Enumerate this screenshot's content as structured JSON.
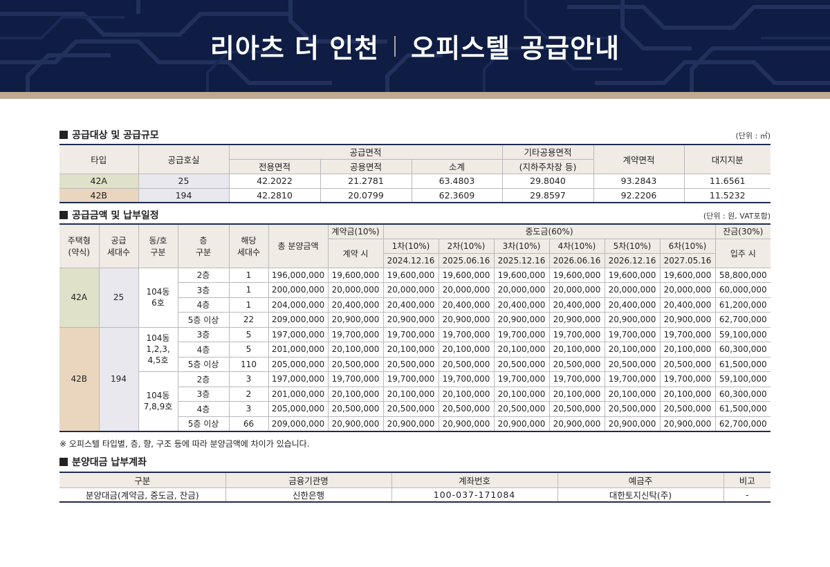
{
  "header": {
    "title_left": "리아츠 더 인천",
    "title_right": "오피스텔 공급안내"
  },
  "colors": {
    "banner": "#0f1d44",
    "strip": "#bfa98f",
    "type_42a": "#dfe1c8",
    "type_42b": "#ead6be",
    "table_header": "#f1ebe5",
    "rule": "#1d2b4f"
  },
  "supply": {
    "title": "공급대상 및 공급규모",
    "unit": "(단위 : ㎡)",
    "headers": {
      "type": "타입",
      "units": "공급호실",
      "area": "공급면적",
      "exclusive": "전용면적",
      "common": "공용면적",
      "subtotal": "소계",
      "other": "기타공용면적",
      "other_sub": "(지하주차장 등)",
      "contract": "계약면적",
      "land": "대지지분"
    },
    "rows": [
      {
        "type": "42A",
        "units": "25",
        "exclusive": "42.2022",
        "common": "21.2781",
        "subtotal": "63.4803",
        "other": "29.8040",
        "contract": "93.2843",
        "land": "11.6561"
      },
      {
        "type": "42B",
        "units": "194",
        "exclusive": "42.2810",
        "common": "20.0799",
        "subtotal": "62.3609",
        "other": "29.8597",
        "contract": "92.2206",
        "land": "11.5232"
      }
    ]
  },
  "price": {
    "title": "공급금액 및 납부일정",
    "unit": "(단위 : 원, VAT포함)",
    "headers": {
      "type": "주택형",
      "type_sub": "(약식)",
      "units": "공급",
      "units_sub": "세대수",
      "dong": "동/호",
      "dong_sub": "구분",
      "floor": "층",
      "floor_sub": "구분",
      "count": "해당",
      "count_sub": "세대수",
      "total": "총 분양금액",
      "deposit": "계약금(10%)",
      "deposit_sub": "계약 시",
      "middle": "중도금(60%)",
      "balance": "잔금(30%)",
      "balance_sub": "입주 시",
      "installments": [
        {
          "label": "1차(10%)",
          "date": "2024.12.16"
        },
        {
          "label": "2차(10%)",
          "date": "2025.06.16"
        },
        {
          "label": "3차(10%)",
          "date": "2025.12.16"
        },
        {
          "label": "4차(10%)",
          "date": "2026.06.16"
        },
        {
          "label": "5차(10%)",
          "date": "2026.12.16"
        },
        {
          "label": "6차(10%)",
          "date": "2027.05.16"
        }
      ]
    },
    "groups": {
      "a": {
        "type": "42A",
        "units": "25",
        "dong": "104동 6호"
      },
      "b": {
        "type": "42B",
        "units": "194",
        "dong1_l1": "104동",
        "dong1_l2": "1,2,3,",
        "dong1_l3": "4,5호",
        "dong2_l1": "104동",
        "dong2_l2": "7,8,9호"
      }
    },
    "rows": [
      {
        "floor": "2층",
        "count": "1",
        "total": "196,000,000",
        "deposit": "19,600,000",
        "mid": [
          "19,600,000",
          "19,600,000",
          "19,600,000",
          "19,600,000",
          "19,600,000",
          "19,600,000"
        ],
        "balance": "58,800,000"
      },
      {
        "floor": "3층",
        "count": "1",
        "total": "200,000,000",
        "deposit": "20,000,000",
        "mid": [
          "20,000,000",
          "20,000,000",
          "20,000,000",
          "20,000,000",
          "20,000,000",
          "20,000,000"
        ],
        "balance": "60,000,000"
      },
      {
        "floor": "4층",
        "count": "1",
        "total": "204,000,000",
        "deposit": "20,400,000",
        "mid": [
          "20,400,000",
          "20,400,000",
          "20,400,000",
          "20,400,000",
          "20,400,000",
          "20,400,000"
        ],
        "balance": "61,200,000"
      },
      {
        "floor": "5층 이상",
        "count": "22",
        "total": "209,000,000",
        "deposit": "20,900,000",
        "mid": [
          "20,900,000",
          "20,900,000",
          "20,900,000",
          "20,900,000",
          "20,900,000",
          "20,900,000"
        ],
        "balance": "62,700,000"
      },
      {
        "floor": "3층",
        "count": "5",
        "total": "197,000,000",
        "deposit": "19,700,000",
        "mid": [
          "19,700,000",
          "19,700,000",
          "19,700,000",
          "19,700,000",
          "19,700,000",
          "19,700,000"
        ],
        "balance": "59,100,000"
      },
      {
        "floor": "4층",
        "count": "5",
        "total": "201,000,000",
        "deposit": "20,100,000",
        "mid": [
          "20,100,000",
          "20,100,000",
          "20,100,000",
          "20,100,000",
          "20,100,000",
          "20,100,000"
        ],
        "balance": "60,300,000"
      },
      {
        "floor": "5층 이상",
        "count": "110",
        "total": "205,000,000",
        "deposit": "20,500,000",
        "mid": [
          "20,500,000",
          "20,500,000",
          "20,500,000",
          "20,500,000",
          "20,500,000",
          "20,500,000"
        ],
        "balance": "61,500,000"
      },
      {
        "floor": "2층",
        "count": "3",
        "total": "197,000,000",
        "deposit": "19,700,000",
        "mid": [
          "19,700,000",
          "19,700,000",
          "19,700,000",
          "19,700,000",
          "19,700,000",
          "19,700,000"
        ],
        "balance": "59,100,000"
      },
      {
        "floor": "3층",
        "count": "2",
        "total": "201,000,000",
        "deposit": "20,100,000",
        "mid": [
          "20,100,000",
          "20,100,000",
          "20,100,000",
          "20,100,000",
          "20,100,000",
          "20,100,000"
        ],
        "balance": "60,300,000"
      },
      {
        "floor": "4층",
        "count": "3",
        "total": "205,000,000",
        "deposit": "20,500,000",
        "mid": [
          "20,500,000",
          "20,500,000",
          "20,500,000",
          "20,500,000",
          "20,500,000",
          "20,500,000"
        ],
        "balance": "61,500,000"
      },
      {
        "floor": "5층 이상",
        "count": "66",
        "total": "209,000,000",
        "deposit": "20,900,000",
        "mid": [
          "20,900,000",
          "20,900,000",
          "20,900,000",
          "20,900,000",
          "20,900,000",
          "20,900,000"
        ],
        "balance": "62,700,000"
      }
    ],
    "note": "※ 오피스텔 타입별, 층, 향, 구조 등에 따라 분양금액에 차이가 있습니다."
  },
  "account": {
    "title": "분양대금 납부계좌",
    "headers": [
      "구분",
      "금융기관명",
      "계좌번호",
      "예금주",
      "비고"
    ],
    "row": [
      "분양대금(계약금, 중도금, 잔금)",
      "신한은행",
      "100-037-171084",
      "대한토지신탁(주)",
      "-"
    ]
  }
}
